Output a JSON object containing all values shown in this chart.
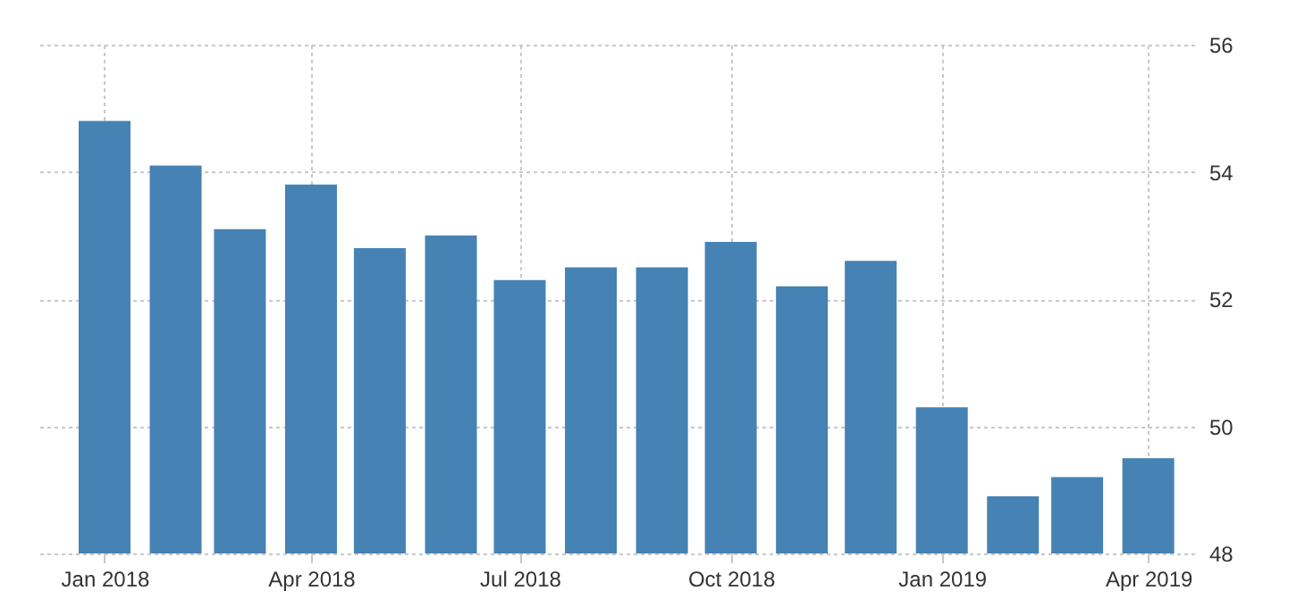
{
  "chart_data": {
    "type": "bar",
    "x": [
      "2018-01",
      "2018-02",
      "2018-03",
      "2018-04",
      "2018-05",
      "2018-06",
      "2018-07",
      "2018-08",
      "2018-09",
      "2018-10",
      "2018-11",
      "2018-12",
      "2019-01",
      "2019-02",
      "2019-03",
      "2019-04"
    ],
    "values": [
      54.8,
      54.1,
      53.1,
      53.8,
      52.8,
      53.0,
      52.3,
      52.5,
      52.5,
      52.9,
      52.2,
      52.6,
      50.3,
      48.9,
      49.2,
      49.5
    ],
    "color": "#4682b4",
    "xlim": [
      "2017-12-02",
      "2019-04-21"
    ],
    "xticks": [
      {
        "value": "2018-01",
        "label": "Jan 2018"
      },
      {
        "value": "2018-04",
        "label": "Apr 2018"
      },
      {
        "value": "2018-07",
        "label": "Jul 2018"
      },
      {
        "value": "2018-10",
        "label": "Oct 2018"
      },
      {
        "value": "2019-01",
        "label": "Jan 2019"
      },
      {
        "value": "2019-04",
        "label": "Apr 2019"
      }
    ],
    "ylim": [
      48,
      56
    ],
    "yticks": [
      48,
      50,
      52,
      54,
      56
    ],
    "grid": true
  }
}
